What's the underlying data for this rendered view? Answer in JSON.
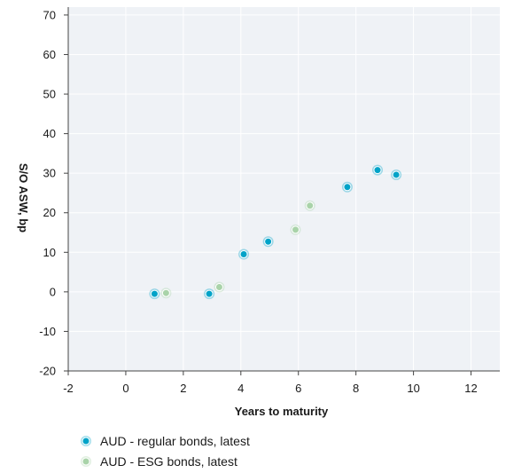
{
  "chart_data": {
    "type": "scatter",
    "xlabel": "Years to maturity",
    "ylabel": "S/O ASW, bp",
    "xlim": [
      -2,
      13
    ],
    "ylim": [
      -20,
      72
    ],
    "xticks": [
      -2,
      0,
      2,
      4,
      6,
      8,
      10,
      12
    ],
    "yticks": [
      -20,
      -10,
      0,
      10,
      20,
      30,
      40,
      50,
      60,
      70
    ],
    "grid": true,
    "legend_position": "bottom-left",
    "plot_background": "#eff2f6",
    "series": [
      {
        "name": "AUD - regular bonds, latest",
        "color": "#00a3c8",
        "points": [
          {
            "x": 1.0,
            "y": -0.5
          },
          {
            "x": 2.9,
            "y": -0.5
          },
          {
            "x": 4.1,
            "y": 9.5
          },
          {
            "x": 4.95,
            "y": 12.7
          },
          {
            "x": 7.7,
            "y": 26.5
          },
          {
            "x": 8.75,
            "y": 30.8
          },
          {
            "x": 9.4,
            "y": 29.6
          }
        ]
      },
      {
        "name": "AUD - ESG bonds, latest",
        "color": "#a9d3a9",
        "points": [
          {
            "x": 1.4,
            "y": -0.3
          },
          {
            "x": 3.25,
            "y": 1.2
          },
          {
            "x": 5.9,
            "y": 15.7
          },
          {
            "x": 6.4,
            "y": 21.8
          }
        ]
      }
    ]
  }
}
